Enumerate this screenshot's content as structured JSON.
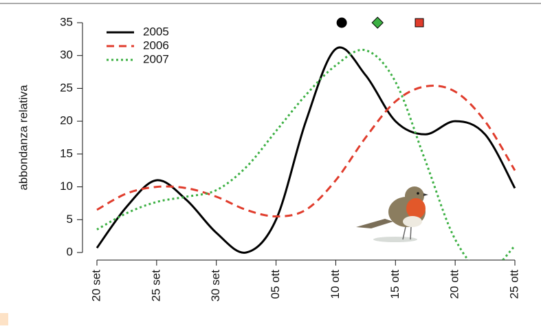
{
  "chart_data": {
    "type": "line",
    "y_label": "abbondanza relativa",
    "x": [
      0,
      2.5,
      5,
      7.5,
      10,
      12.5,
      15,
      17.5,
      20,
      22.5,
      25,
      27.5,
      30,
      32.5,
      35
    ],
    "xlim": [
      0,
      35
    ],
    "xticks": [
      {
        "value": 0,
        "label": "20 set"
      },
      {
        "value": 5,
        "label": "25 set"
      },
      {
        "value": 10,
        "label": "30 set"
      },
      {
        "value": 15,
        "label": "05 ott"
      },
      {
        "value": 20,
        "label": "10 ott"
      },
      {
        "value": 25,
        "label": "15 ott"
      },
      {
        "value": 30,
        "label": "20 ott"
      },
      {
        "value": 35,
        "label": "25 ott"
      }
    ],
    "ylim": [
      0,
      35
    ],
    "yticks": [
      0,
      5,
      10,
      15,
      20,
      25,
      30,
      35
    ],
    "legend": "top-left",
    "series": [
      {
        "name": "2005",
        "color": "#000000",
        "line_style": "solid",
        "marker_shape": "circle",
        "marker_x": 20.5,
        "values": [
          0.7,
          7,
          11,
          8,
          3,
          0,
          5,
          20,
          31,
          27,
          20,
          18,
          20,
          18,
          9.8
        ]
      },
      {
        "name": "2006",
        "color": "#e03c2c",
        "line_style": "dashed",
        "marker_shape": "square",
        "marker_x": 27,
        "values": [
          6.5,
          9,
          10,
          9.8,
          8.5,
          6.5,
          5.5,
          6.5,
          11,
          17.5,
          23,
          25.3,
          24.5,
          20,
          12.5
        ]
      },
      {
        "name": "2007",
        "color": "#3cb043",
        "line_style": "dotted",
        "marker_shape": "diamond",
        "marker_x": 23.5,
        "values": [
          3.5,
          6,
          7.7,
          8.5,
          9.5,
          13,
          18.5,
          24,
          28.5,
          30.8,
          26,
          14,
          2,
          -3,
          1
        ]
      }
    ]
  }
}
